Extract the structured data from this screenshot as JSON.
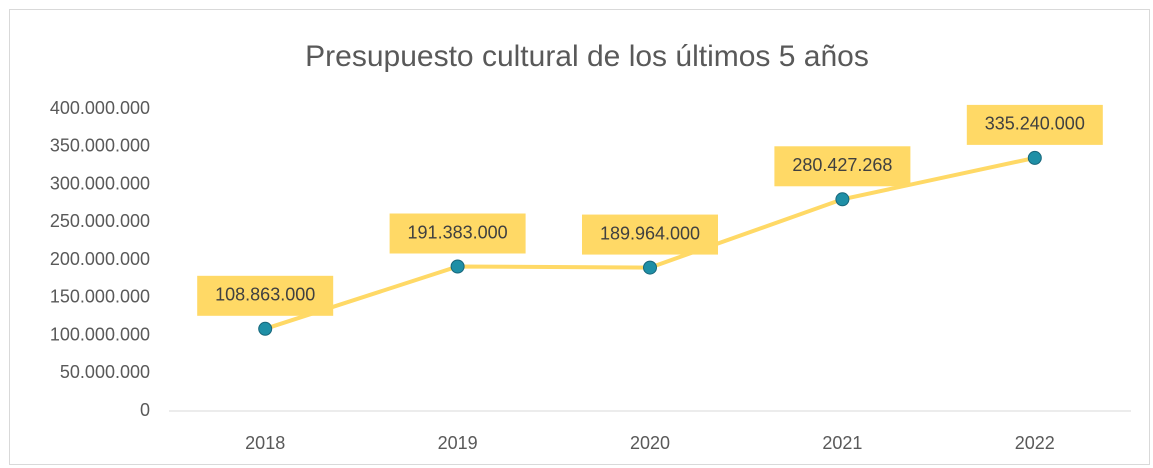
{
  "chart_data": {
    "type": "line",
    "title": "Presupuesto cultural de los últimos 5 años",
    "categories": [
      "2018",
      "2019",
      "2020",
      "2021",
      "2022"
    ],
    "values": [
      108863000,
      191383000,
      189964000,
      280427268,
      335240000
    ],
    "value_labels": [
      "108.863.000",
      "191.383.000",
      "189.964.000",
      "280.427.268",
      "335.240.000"
    ],
    "color": "#ffd966",
    "marker_color": "#1f8fa6",
    "ylim": [
      0,
      400000000
    ],
    "yticks": [
      0,
      {
        "value": 50000000,
        "label": "50.000.000"
      },
      {
        "value": 100000000,
        "label": "100.000.000"
      },
      {
        "value": 150000000,
        "label": "150.000.000"
      },
      {
        "value": 200000000,
        "label": "200.000.000"
      },
      {
        "value": 250000000,
        "label": "250.000.000"
      },
      {
        "value": 300000000,
        "label": "300.000.000"
      },
      {
        "value": 350000000,
        "label": "350.000.000"
      },
      {
        "value": 400000000,
        "label": "400.000.000"
      }
    ],
    "grid": false
  }
}
